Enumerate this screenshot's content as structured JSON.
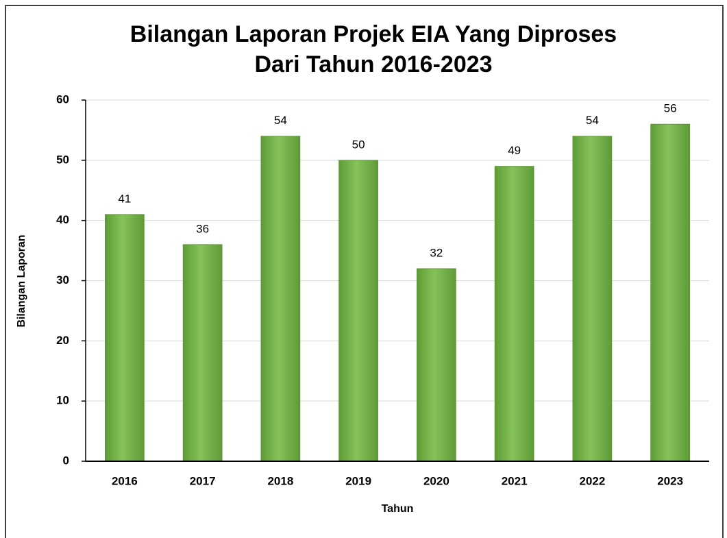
{
  "chart_data": {
    "type": "bar",
    "title": [
      "Bilangan Laporan Projek EIA Yang Diproses",
      "Dari Tahun 2016-2023"
    ],
    "x_label": "Tahun",
    "y_label": "Bilangan Laporan",
    "categories": [
      "2016",
      "2017",
      "2018",
      "2019",
      "2020",
      "2021",
      "2022",
      "2023"
    ],
    "values": [
      41,
      36,
      54,
      50,
      32,
      49,
      54,
      56
    ],
    "color": "#74b446",
    "ylim": [
      0,
      60
    ],
    "yticks": [
      0,
      10,
      20,
      30,
      40,
      50,
      60
    ],
    "grid": true
  }
}
